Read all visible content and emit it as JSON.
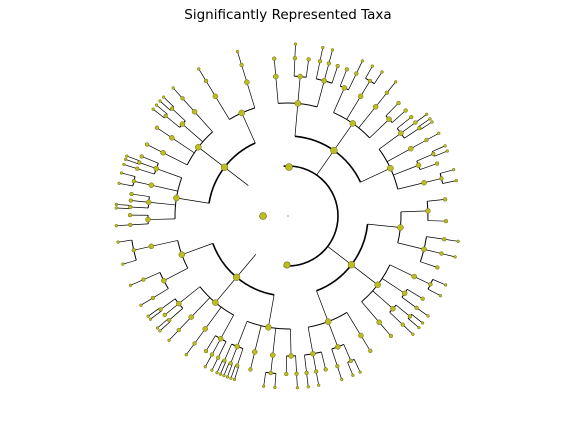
{
  "figure": {
    "title": "Significantly Represented Taxa"
  },
  "style": {
    "node_fill": "#bcbd22",
    "node_stroke": "#6b6b10",
    "edge_color": "#000000",
    "background": "#ffffff"
  }
}
